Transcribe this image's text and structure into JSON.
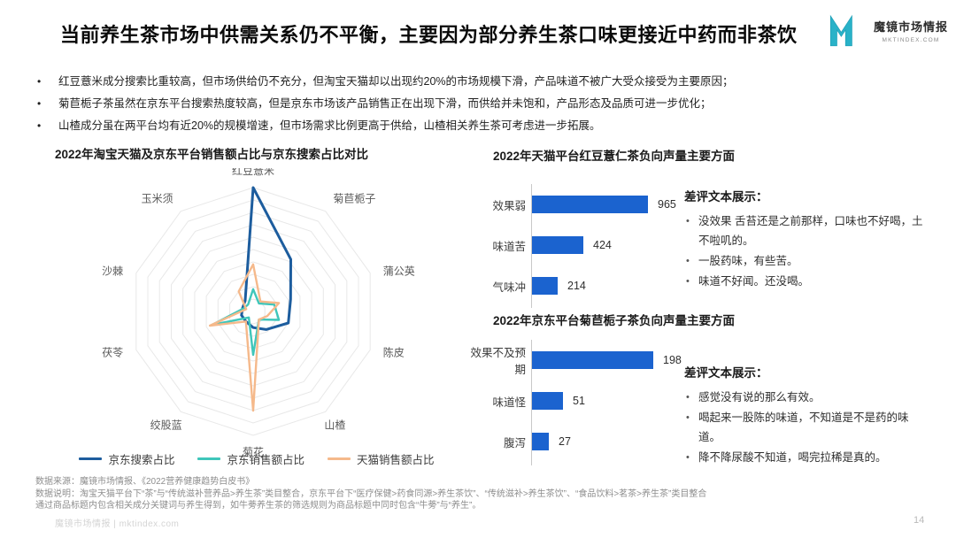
{
  "header": {
    "title": "当前养生茶市场中供需关系仍不平衡，主要因为部分养生茶口味更接近中药而非茶饮",
    "brand_name": "魔镜市场情报",
    "brand_url": "MKTINDEX.COM",
    "brand_color": "#29b2c8"
  },
  "bullets": [
    "红豆薏米成分搜索比重较高，但市场供给仍不充分，但淘宝天猫却以出现约20%的市场规模下滑，产品味道不被广大受众接受为主要原因；",
    "菊苣栀子茶虽然在京东平台搜索热度较高，但是京东市场该产品销售正在出现下滑，而供给并未饱和，产品形态及品质可进一步优化；",
    "山楂成分虽在两平台均有近20%的规模增速，但市场需求比例更高于供给，山楂相关养生茶可考虑进一步拓展。"
  ],
  "chart_data": [
    {
      "type": "radar",
      "title": "2022年淘宝天猫及京东平台销售额占比与京东搜索占比对比",
      "axes": [
        "红豆薏米",
        "菊苣栀子",
        "蒲公英",
        "陈皮",
        "山楂",
        "菊花",
        "绞股蓝",
        "茯苓",
        "沙棘",
        "玉米须"
      ],
      "rings": 10,
      "grid_color": "#e8e8e8",
      "legend_position": "bottom",
      "series": [
        {
          "name": "京东搜索占比",
          "color": "#1d5d9e",
          "values": [
            100,
            52,
            32,
            30,
            18,
            13,
            10,
            10,
            9,
            11
          ]
        },
        {
          "name": "京东销售额占比",
          "color": "#3fc6ba",
          "values": [
            18,
            8,
            18,
            22,
            8,
            35,
            6,
            35,
            8,
            7
          ]
        },
        {
          "name": "天猫销售额占比",
          "color": "#f5b98b",
          "values": [
            38,
            10,
            22,
            12,
            8,
            80,
            10,
            37,
            6,
            20
          ]
        }
      ]
    },
    {
      "type": "bar",
      "title": "2022年天猫平台红豆薏仁茶负向声量主要方面",
      "orientation": "horizontal",
      "categories": [
        "效果弱",
        "味道苦",
        "气味冲"
      ],
      "values": [
        965,
        424,
        214
      ],
      "bar_color": "#1b63cf"
    },
    {
      "type": "bar",
      "title": "2022年京东平台菊苣栀子茶负向声量主要方面",
      "orientation": "horizontal",
      "categories": [
        "效果不及预期",
        "味道怪",
        "腹泻"
      ],
      "values": [
        198,
        51,
        27
      ],
      "bar_color": "#1b63cf"
    }
  ],
  "reviews_top": {
    "heading": "差评文本展示：",
    "items": [
      "没效果 舌苔还是之前那样，口味也不好喝，土不啦叽的。",
      "一股药味，有些苦。",
      "味道不好闻。还没喝。"
    ]
  },
  "reviews_bottom": {
    "heading": "差评文本展示：",
    "items": [
      "感觉没有说的那么有效。",
      "喝起来一股陈的味道，不知道是不是药的味道。",
      "降不降尿酸不知道，喝完拉稀是真的。"
    ]
  },
  "footer": {
    "lines": [
      "数据来源：魔镜市场情报、《2022营养健康趋势白皮书》",
      "数据说明：淘宝天猫平台下“茶”与“传统滋补营养品>养生茶”类目整合，京东平台下“医疗保健>药食同源>养生茶饮”、“传统滋补>养生茶饮”、“食品饮料>茗茶>养生茶”类目整合",
      "通过商品标题内包含相关成分关键词与养生得到，如牛蒡养生茶的筛选规则为商品标题中同时包含“牛蒡”与“养生”。"
    ],
    "watermark": "魔镜市场情报 | mktindex.com",
    "page_number": "14"
  }
}
